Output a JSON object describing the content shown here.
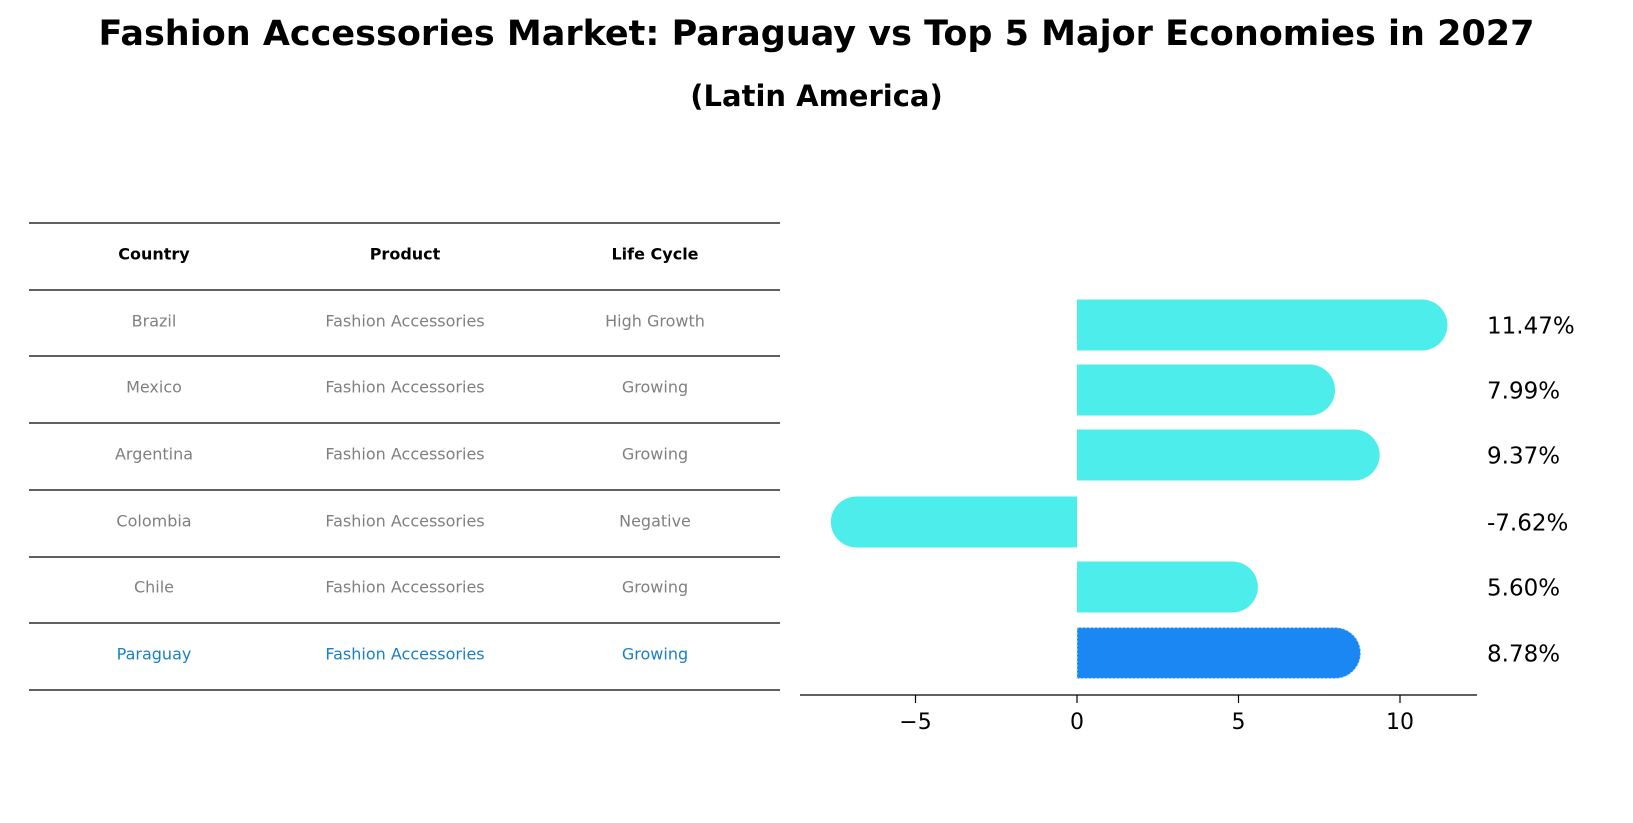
{
  "title": "Fashion Accessories Market: Paraguay vs Top 5 Major Economies in 2027",
  "subtitle": "(Latin America)",
  "colors": {
    "bar": "#4dedeb",
    "highlight_bar": "#1a87f2",
    "highlight_text": "#1a7fc7",
    "table_text": "#808080"
  },
  "table": {
    "headers": [
      "Country",
      "Product",
      "Life Cycle"
    ],
    "rows": [
      [
        "Brazil",
        "Fashion Accessories",
        "High Growth"
      ],
      [
        "Mexico",
        "Fashion Accessories",
        "Growing"
      ],
      [
        "Argentina",
        "Fashion Accessories",
        "Growing"
      ],
      [
        "Colombia",
        "Fashion Accessories",
        "Negative"
      ],
      [
        "Chile",
        "Fashion Accessories",
        "Growing"
      ],
      [
        "Paraguay",
        "Fashion Accessories",
        "Growing"
      ]
    ],
    "highlight_row": 5
  },
  "chart_data": {
    "type": "bar",
    "orientation": "horizontal",
    "categories": [
      "Brazil",
      "Mexico",
      "Argentina",
      "Colombia",
      "Chile",
      "Paraguay"
    ],
    "values": [
      11.47,
      7.99,
      9.37,
      -7.62,
      5.6,
      8.78
    ],
    "value_labels": [
      "11.47%",
      "7.99%",
      "9.37%",
      "-7.62%",
      "5.60%",
      "8.78%"
    ],
    "highlight_index": 5,
    "xticks": [
      -5,
      0,
      5,
      10
    ],
    "xtick_labels": [
      "−5",
      "0",
      "5",
      "10"
    ],
    "xlim": [
      -8.5,
      12.5
    ],
    "grid": false
  }
}
